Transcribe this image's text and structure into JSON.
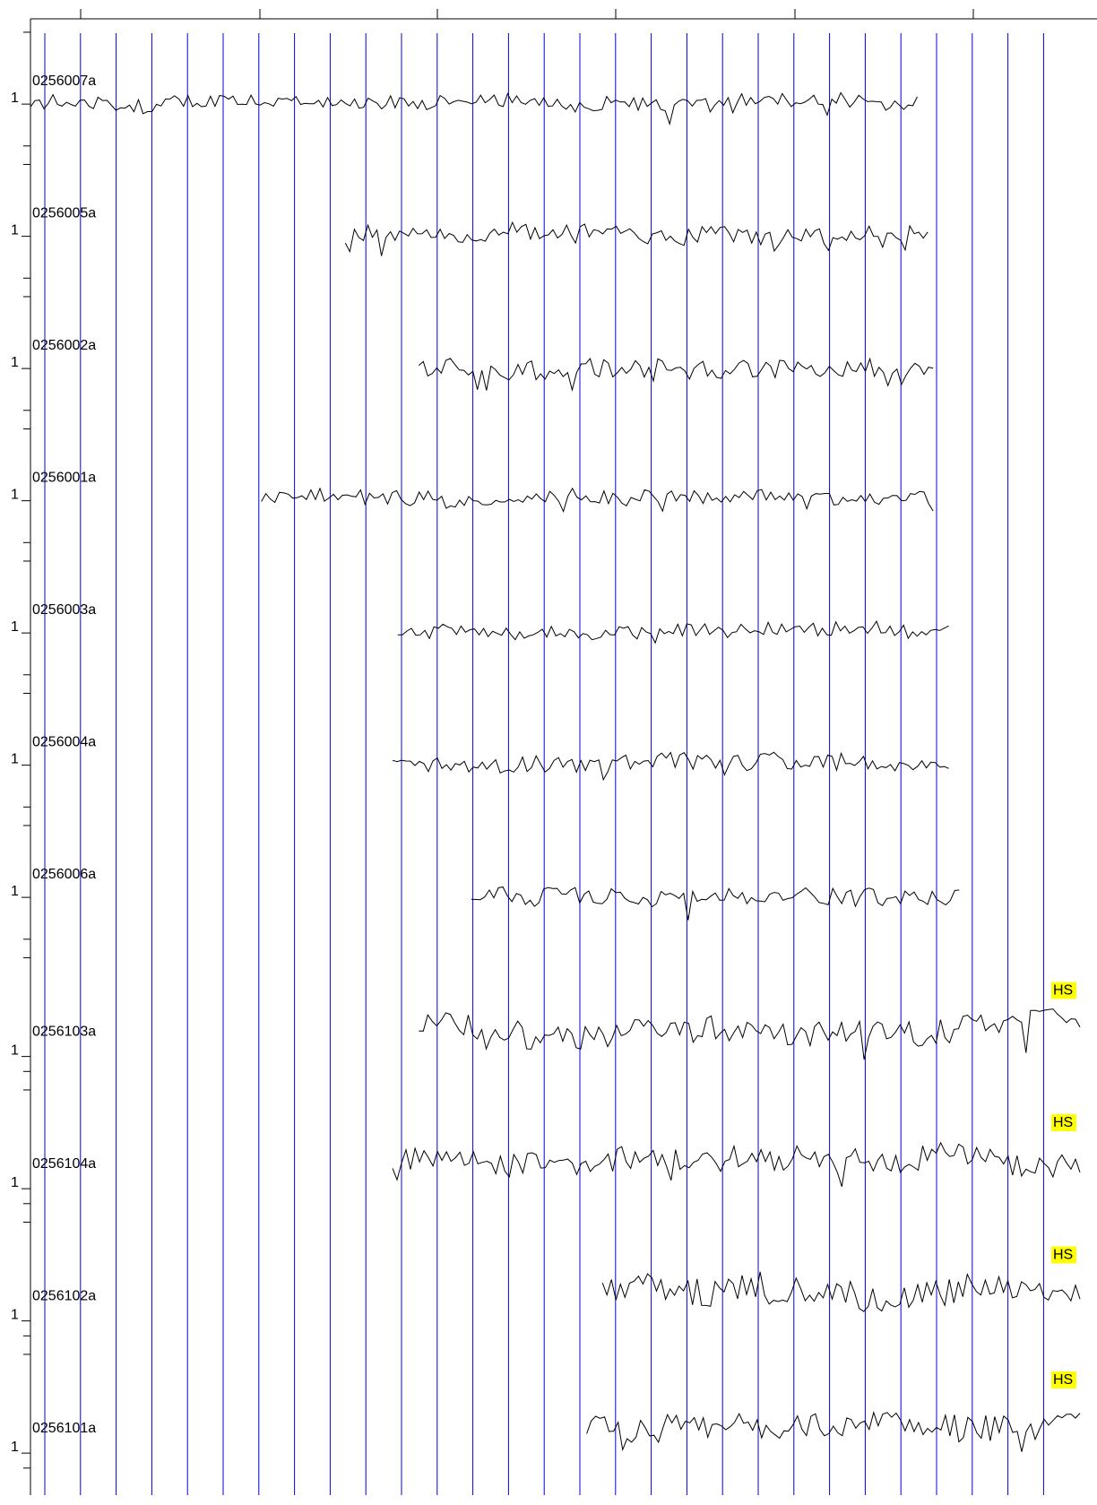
{
  "chart_data": {
    "type": "line",
    "title": "",
    "xlabel": "",
    "ylabel": "",
    "grid": true,
    "colors": {
      "trace": "#000000",
      "gridline": "#0000dd",
      "axis": "#000000",
      "hs_highlight": "#ffff00"
    },
    "top_axis_major_ticks": 6,
    "traces": [
      {
        "name": "0256007a",
        "scale_label": "1",
        "start": 0.0,
        "end": 0.845,
        "amplitude": 0.55,
        "seed": 7
      },
      {
        "name": "0256005a",
        "scale_label": "1",
        "start": 0.3,
        "end": 0.855,
        "amplitude": 0.6,
        "seed": 5
      },
      {
        "name": "0256002a",
        "scale_label": "1",
        "start": 0.37,
        "end": 0.86,
        "amplitude": 0.75,
        "seed": 2
      },
      {
        "name": "0256001a",
        "scale_label": "1",
        "start": 0.22,
        "end": 0.86,
        "amplitude": 0.55,
        "seed": 1
      },
      {
        "name": "0256003a",
        "scale_label": "1",
        "start": 0.35,
        "end": 0.875,
        "amplitude": 0.55,
        "seed": 3
      },
      {
        "name": "0256004a",
        "scale_label": "1",
        "start": 0.345,
        "end": 0.875,
        "amplitude": 0.65,
        "seed": 4
      },
      {
        "name": "0256006a",
        "scale_label": "1",
        "start": 0.42,
        "end": 0.885,
        "amplitude": 0.65,
        "seed": 6
      },
      {
        "name": "0256103a",
        "scale_label": "1",
        "start": 0.37,
        "end": 1.0,
        "amplitude": 1.0,
        "seed": 13,
        "marker": "HS"
      },
      {
        "name": "0256104a",
        "scale_label": "1",
        "start": 0.345,
        "end": 1.0,
        "amplitude": 0.9,
        "seed": 14,
        "marker": "HS"
      },
      {
        "name": "0256102a",
        "scale_label": "1",
        "start": 0.545,
        "end": 1.0,
        "amplitude": 1.0,
        "seed": 12,
        "marker": "HS"
      },
      {
        "name": "0256101a",
        "scale_label": "1",
        "start": 0.53,
        "end": 1.0,
        "amplitude": 1.0,
        "seed": 11,
        "marker": "HS"
      }
    ]
  }
}
